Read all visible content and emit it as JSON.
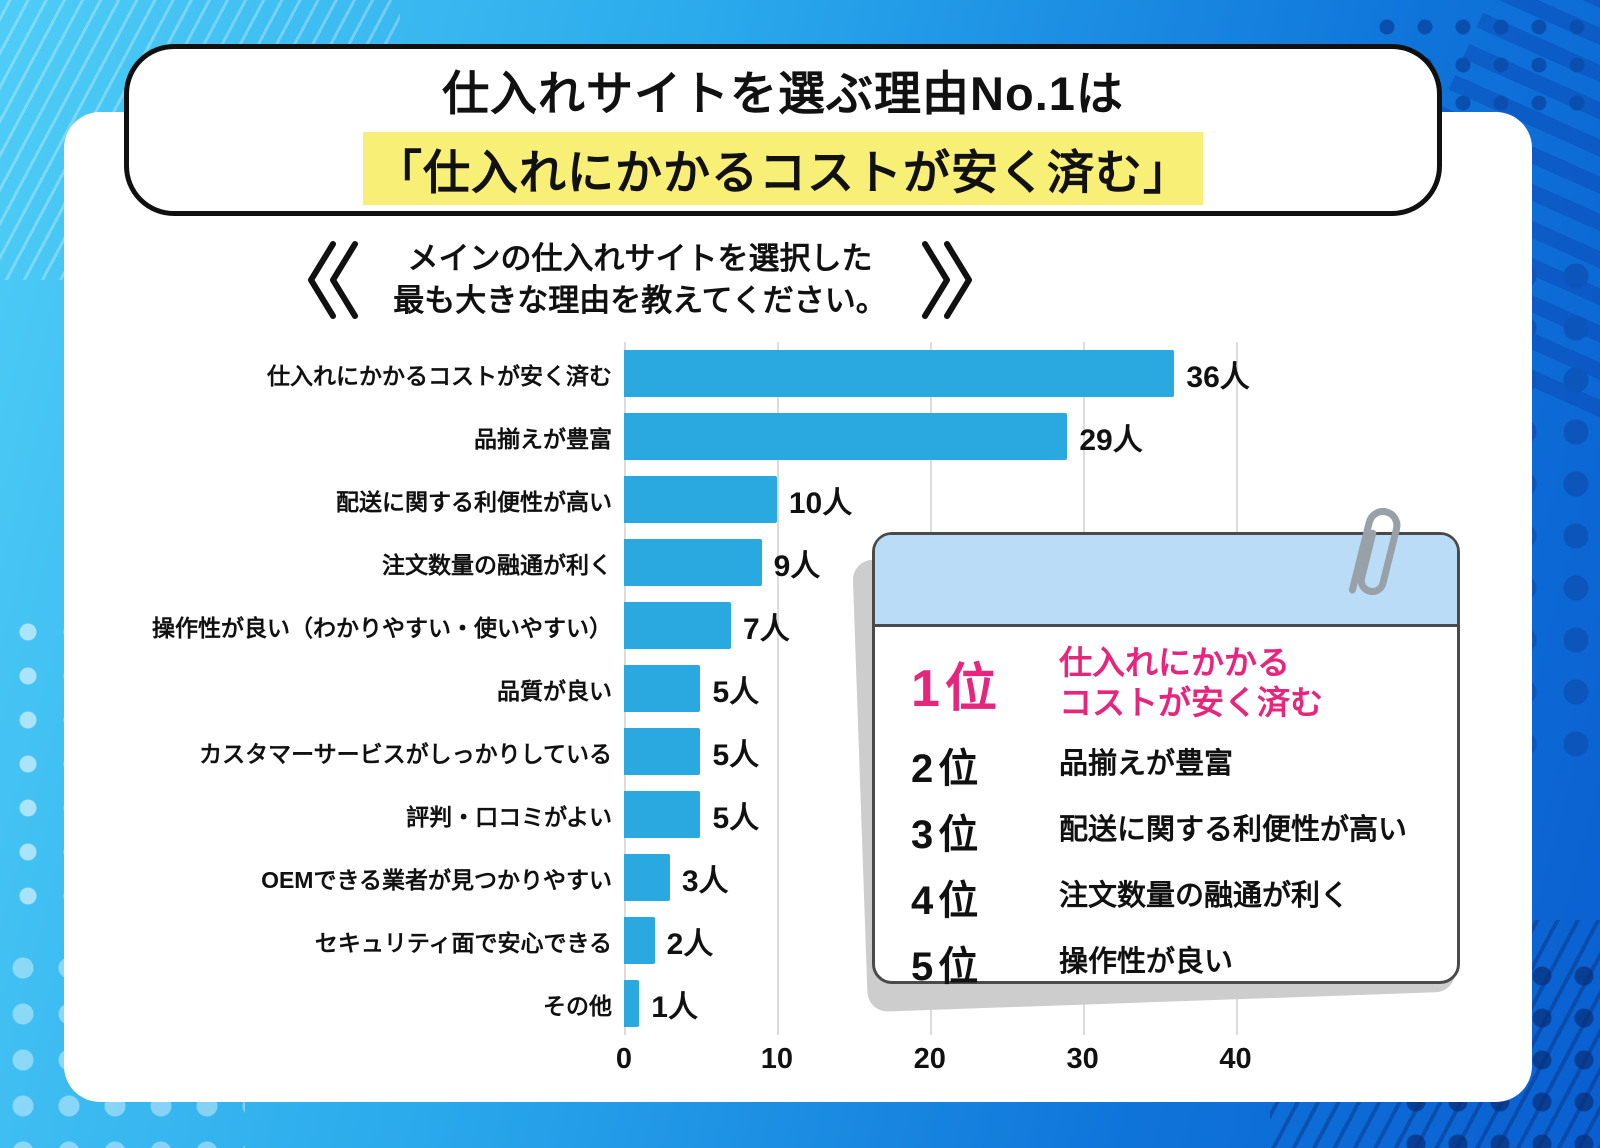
{
  "title": {
    "line1": "仕入れサイトを選ぶ理由No.1は",
    "line2": "「仕入れにかかるコストが安く済む」",
    "highlight_color": "#f8ef77"
  },
  "subtitle": {
    "line1": "メインの仕入れサイトを選択した",
    "line2": "最も大きな理由を教えてください。"
  },
  "chart_data": {
    "type": "bar",
    "orientation": "horizontal",
    "title": "メインの仕入れサイトを選択した最も大きな理由を教えてください。",
    "categories": [
      "仕入れにかかるコストが安く済む",
      "品揃えが豊富",
      "配送に関する利便性が高い",
      "注文数量の融通が利く",
      "操作性が良い（わかりやすい・使いやすい）",
      "品質が良い",
      "カスタマーサービスがしっかりしている",
      "評判・口コミがよい",
      "OEMできる業者が見つかりやすい",
      "セキュリティ面で安心できる",
      "その他"
    ],
    "values": [
      36,
      29,
      10,
      9,
      7,
      5,
      5,
      5,
      3,
      2,
      1
    ],
    "value_suffix": "人",
    "xlabel": "",
    "ylabel": "",
    "xlim": [
      0,
      45
    ],
    "xticks": [
      0,
      10,
      20,
      30,
      40
    ],
    "bar_color": "#2aa8e0",
    "grid": true,
    "legend": false
  },
  "ranking_card": {
    "highlight_color": "#e8257d",
    "items": [
      {
        "rank": "1位",
        "label_lines": [
          "仕入れにかかる",
          "コストが安く済む"
        ]
      },
      {
        "rank": "2位",
        "label_lines": [
          "品揃えが豊富"
        ]
      },
      {
        "rank": "3位",
        "label_lines": [
          "配送に関する利便性が高い"
        ]
      },
      {
        "rank": "4位",
        "label_lines": [
          "注文数量の融通が利く"
        ]
      },
      {
        "rank": "5位",
        "label_lines": [
          "操作性が良い"
        ]
      }
    ]
  }
}
